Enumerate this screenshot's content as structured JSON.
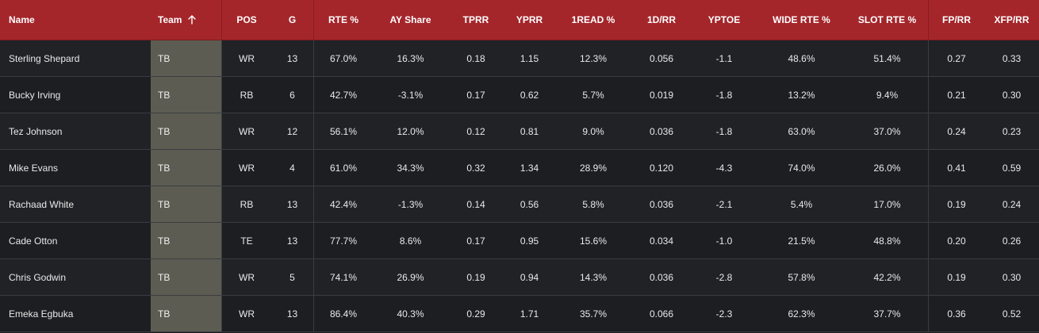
{
  "table": {
    "columns": [
      "Name",
      "Team",
      "POS",
      "G",
      "RTE %",
      "AY Share",
      "TPRR",
      "YPRR",
      "1READ %",
      "1D/RR",
      "YPTOE",
      "WIDE RTE %",
      "SLOT RTE %",
      "FP/RR",
      "XFP/RR"
    ],
    "sorted_column": "Team",
    "sort_direction": "ascending",
    "sort_icon": "arrow-up-icon",
    "rows": [
      [
        "Sterling Shepard",
        "TB",
        "WR",
        "13",
        "67.0%",
        "16.3%",
        "0.18",
        "1.15",
        "12.3%",
        "0.056",
        "-1.1",
        "48.6%",
        "51.4%",
        "0.27",
        "0.33"
      ],
      [
        "Bucky Irving",
        "TB",
        "RB",
        "6",
        "42.7%",
        "-3.1%",
        "0.17",
        "0.62",
        "5.7%",
        "0.019",
        "-1.8",
        "13.2%",
        "9.4%",
        "0.21",
        "0.30"
      ],
      [
        "Tez Johnson",
        "TB",
        "WR",
        "12",
        "56.1%",
        "12.0%",
        "0.12",
        "0.81",
        "9.0%",
        "0.036",
        "-1.8",
        "63.0%",
        "37.0%",
        "0.24",
        "0.23"
      ],
      [
        "Mike Evans",
        "TB",
        "WR",
        "4",
        "61.0%",
        "34.3%",
        "0.32",
        "1.34",
        "28.9%",
        "0.120",
        "-4.3",
        "74.0%",
        "26.0%",
        "0.41",
        "0.59"
      ],
      [
        "Rachaad White",
        "TB",
        "RB",
        "13",
        "42.4%",
        "-1.3%",
        "0.14",
        "0.56",
        "5.8%",
        "0.036",
        "-2.1",
        "5.4%",
        "17.0%",
        "0.19",
        "0.24"
      ],
      [
        "Cade Otton",
        "TB",
        "TE",
        "13",
        "77.7%",
        "8.6%",
        "0.17",
        "0.95",
        "15.6%",
        "0.034",
        "-1.0",
        "21.5%",
        "48.8%",
        "0.20",
        "0.26"
      ],
      [
        "Chris Godwin",
        "TB",
        "WR",
        "5",
        "74.1%",
        "26.9%",
        "0.19",
        "0.94",
        "14.3%",
        "0.036",
        "-2.8",
        "57.8%",
        "42.2%",
        "0.19",
        "0.30"
      ],
      [
        "Emeka Egbuka",
        "TB",
        "WR",
        "13",
        "86.4%",
        "40.3%",
        "0.29",
        "1.71",
        "35.7%",
        "0.066",
        "-2.3",
        "62.3%",
        "37.7%",
        "0.36",
        "0.52"
      ]
    ]
  },
  "colors": {
    "header_bg": "#a4262b",
    "team_cell_bg": "#5c5c52",
    "row_bg": "#1c1e21",
    "row_alt_bg": "#202225",
    "text": "#e9e9e9"
  }
}
